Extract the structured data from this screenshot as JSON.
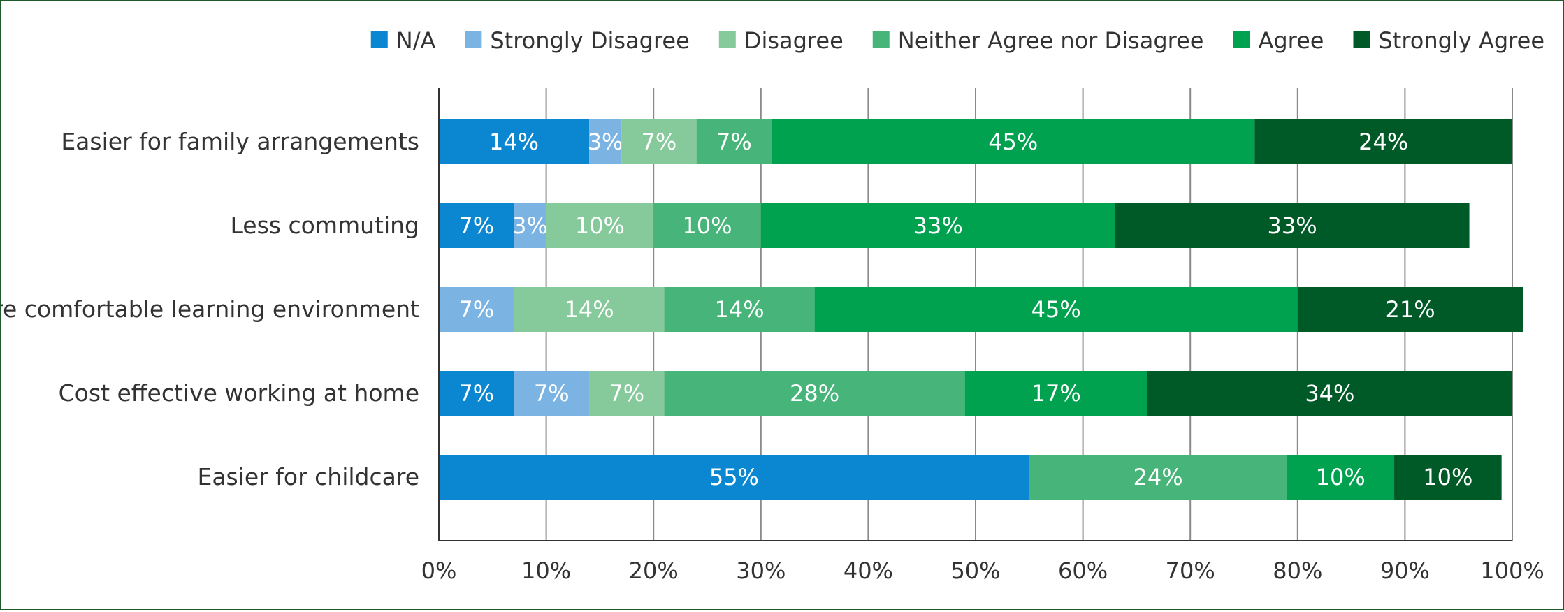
{
  "chart_data": {
    "type": "bar",
    "orientation": "horizontal",
    "stacked": true,
    "categories": [
      "Easier for family arrangements",
      "Less commuting",
      "More comfortable learning environment",
      "Cost effective working at home",
      "Easier for childcare"
    ],
    "series": [
      {
        "name": "N/A",
        "color": "#0a87d0",
        "values": [
          14,
          7,
          0,
          7,
          55
        ],
        "labels": [
          "14%",
          "7%",
          "",
          "7%",
          "55%"
        ]
      },
      {
        "name": "Strongly Disagree",
        "color": "#7bb4e3",
        "values": [
          3,
          3,
          7,
          7,
          0
        ],
        "labels": [
          "3%",
          "3%",
          "7%",
          "7%",
          ""
        ]
      },
      {
        "name": "Disagree",
        "color": "#86c99a",
        "values": [
          7,
          10,
          14,
          7,
          0
        ],
        "labels": [
          "7%",
          "10%",
          "14%",
          "7%",
          ""
        ]
      },
      {
        "name": "Neither Agree nor Disagree",
        "color": "#47b47a",
        "values": [
          7,
          10,
          14,
          28,
          24
        ],
        "labels": [
          "7%",
          "10%",
          "14%",
          "28%",
          "24%"
        ]
      },
      {
        "name": "Agree",
        "color": "#00a24f",
        "values": [
          45,
          33,
          45,
          17,
          10
        ],
        "labels": [
          "45%",
          "33%",
          "45%",
          "17%",
          "10%"
        ]
      },
      {
        "name": "Strongly Agree",
        "color": "#005a27",
        "values": [
          24,
          33,
          21,
          34,
          10
        ],
        "labels": [
          "24%",
          "33%",
          "21%",
          "34%",
          "10%"
        ]
      }
    ],
    "xlim": [
      0,
      100
    ],
    "x_ticks": [
      "0%",
      "10%",
      "20%",
      "30%",
      "40%",
      "50%",
      "60%",
      "70%",
      "80%",
      "90%",
      "100%"
    ],
    "grid": true,
    "legend_position": "top-right",
    "gridline_color": "#8a8a8a",
    "frame_color": "#1f5a2a"
  }
}
